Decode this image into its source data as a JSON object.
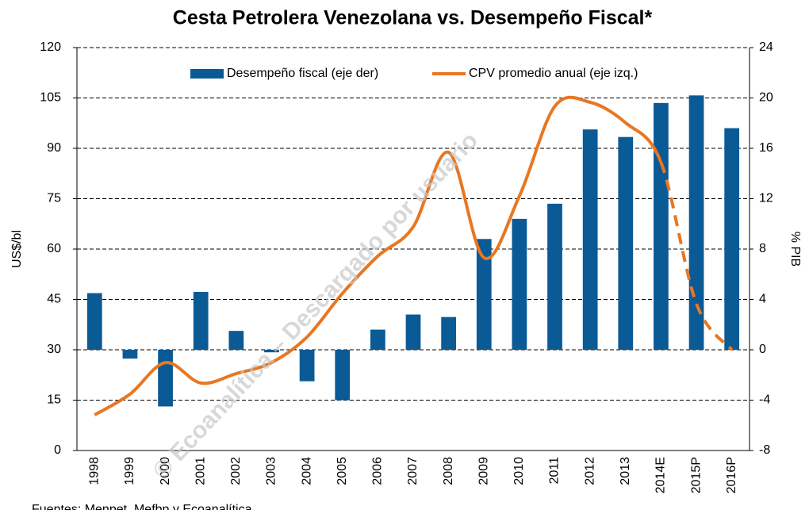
{
  "chart_data": {
    "type": "bar_line",
    "title": "Cesta Petrolera Venezolana vs. Desempeño Fiscal*",
    "y_label": "US$/bl",
    "y2_label": "% PIB",
    "source": "Fuentes: Menpet, Mefbp y Ecoanalítica",
    "watermark": "© Ecoanalítica – Descargado por usuario",
    "categories": [
      "1998",
      "1999",
      "2000",
      "2001",
      "2002",
      "2003",
      "2004",
      "2005",
      "2006",
      "2007",
      "2008",
      "2009",
      "2010",
      "2011",
      "2012",
      "2013",
      "2014E",
      "2015P",
      "2016P"
    ],
    "series": [
      {
        "name": "Desempeño fiscal (eje der)",
        "kind": "bar",
        "axis": "y2",
        "color": "#0a5a96",
        "values": [
          4.5,
          -0.7,
          -4.5,
          4.6,
          1.5,
          -0.2,
          -2.5,
          -4.0,
          1.6,
          2.8,
          2.6,
          8.8,
          10.4,
          11.6,
          17.5,
          16.9,
          19.6,
          20.2,
          17.6
        ]
      },
      {
        "name": "CPV promedio anual (eje izq.)",
        "kind": "line",
        "axis": "y",
        "color": "#e87722",
        "values": [
          10.6,
          16.8,
          26.2,
          20.1,
          22.9,
          26.2,
          33.8,
          46.8,
          57.9,
          66.6,
          88.8,
          57.4,
          75.8,
          102.5,
          103.7,
          97.6,
          85.8,
          43.7,
          30.0
        ]
      }
    ],
    "ylim": [
      0,
      120
    ],
    "yticks": [
      0,
      15,
      30,
      45,
      60,
      75,
      90,
      105,
      120
    ],
    "y2lim": [
      -8,
      24
    ],
    "y2ticks": [
      -8,
      -4,
      0,
      4,
      8,
      12,
      16,
      20,
      24
    ],
    "grid": true
  }
}
